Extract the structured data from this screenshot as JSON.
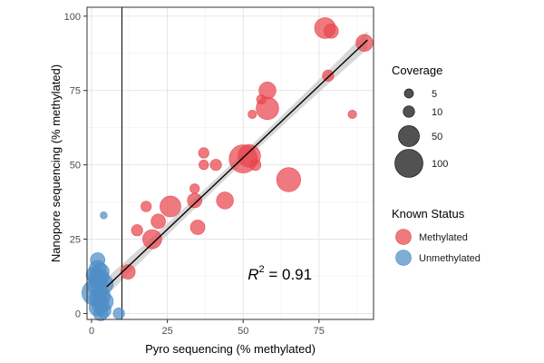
{
  "chart_data": {
    "type": "scatter",
    "title": "",
    "xlabel": "Pyro sequencing (% methylated)",
    "ylabel": "Nanopore sequencing (% methylated)",
    "xlim": [
      -1.5,
      93
    ],
    "ylim": [
      -2,
      103
    ],
    "x_ticks": [
      0,
      25,
      50,
      75
    ],
    "y_ticks": [
      0,
      25,
      50,
      75,
      100
    ],
    "grid": true,
    "vline_x": 10,
    "annotation": {
      "text": "R",
      "sup": "2",
      "rest": " = 0.91"
    },
    "fit_line": {
      "x_start": 5,
      "y_start": 9,
      "x_end": 91,
      "y_end": 92
    },
    "legend_position": "right",
    "size_legend": {
      "title": "Coverage",
      "entries": [
        {
          "label": "5",
          "value": 5
        },
        {
          "label": "10",
          "value": 10
        },
        {
          "label": "50",
          "value": 50
        },
        {
          "label": "100",
          "value": 100
        }
      ]
    },
    "color_legend": {
      "title": "Known Status",
      "entries": [
        {
          "label": "Methylated",
          "color": "#E8474E"
        },
        {
          "label": "Unmethylated",
          "color": "#4F8EC6"
        }
      ]
    },
    "series": [
      {
        "name": "Methylated",
        "color": "#E8474E",
        "points": [
          {
            "x": 77,
            "y": 96,
            "coverage": 50
          },
          {
            "x": 79,
            "y": 95,
            "coverage": 20
          },
          {
            "x": 90,
            "y": 91,
            "coverage": 30
          },
          {
            "x": 78,
            "y": 80,
            "coverage": 10
          },
          {
            "x": 58,
            "y": 75,
            "coverage": 30
          },
          {
            "x": 58,
            "y": 69,
            "coverage": 60
          },
          {
            "x": 56,
            "y": 72,
            "coverage": 6
          },
          {
            "x": 53,
            "y": 67,
            "coverage": 4
          },
          {
            "x": 86,
            "y": 67,
            "coverage": 4
          },
          {
            "x": 37,
            "y": 54,
            "coverage": 8
          },
          {
            "x": 41,
            "y": 50,
            "coverage": 10
          },
          {
            "x": 37,
            "y": 50,
            "coverage": 6
          },
          {
            "x": 52,
            "y": 53,
            "coverage": 60
          },
          {
            "x": 50,
            "y": 52,
            "coverage": 100
          },
          {
            "x": 54,
            "y": 50,
            "coverage": 10
          },
          {
            "x": 65,
            "y": 45,
            "coverage": 70
          },
          {
            "x": 34,
            "y": 42,
            "coverage": 6
          },
          {
            "x": 34,
            "y": 38,
            "coverage": 20
          },
          {
            "x": 44,
            "y": 38,
            "coverage": 30
          },
          {
            "x": 26,
            "y": 36,
            "coverage": 50
          },
          {
            "x": 18,
            "y": 36,
            "coverage": 8
          },
          {
            "x": 22,
            "y": 31,
            "coverage": 20
          },
          {
            "x": 15,
            "y": 28,
            "coverage": 10
          },
          {
            "x": 35,
            "y": 29,
            "coverage": 20
          },
          {
            "x": 20,
            "y": 25,
            "coverage": 40
          },
          {
            "x": 12,
            "y": 14,
            "coverage": 20
          }
        ]
      },
      {
        "name": "Unmethylated",
        "color": "#4F8EC6",
        "points": [
          {
            "x": 4,
            "y": 33,
            "coverage": 2
          },
          {
            "x": 2,
            "y": 18,
            "coverage": 20
          },
          {
            "x": 2,
            "y": 15,
            "coverage": 30
          },
          {
            "x": 3,
            "y": 14,
            "coverage": 30
          },
          {
            "x": 1,
            "y": 13,
            "coverage": 30
          },
          {
            "x": 2,
            "y": 12,
            "coverage": 40
          },
          {
            "x": 3,
            "y": 12,
            "coverage": 30
          },
          {
            "x": 2,
            "y": 11,
            "coverage": 30
          },
          {
            "x": 4,
            "y": 10,
            "coverage": 40
          },
          {
            "x": 2,
            "y": 9,
            "coverage": 40
          },
          {
            "x": 1,
            "y": 7,
            "coverage": 80
          },
          {
            "x": 3,
            "y": 6,
            "coverage": 40
          },
          {
            "x": 2,
            "y": 5,
            "coverage": 30
          },
          {
            "x": 4,
            "y": 4,
            "coverage": 40
          },
          {
            "x": 3,
            "y": 3,
            "coverage": 30
          },
          {
            "x": 2,
            "y": 2,
            "coverage": 30
          },
          {
            "x": 4,
            "y": 1,
            "coverage": 20
          },
          {
            "x": 3,
            "y": 0,
            "coverage": 20
          },
          {
            "x": 9,
            "y": 0,
            "coverage": 10
          }
        ]
      }
    ]
  }
}
